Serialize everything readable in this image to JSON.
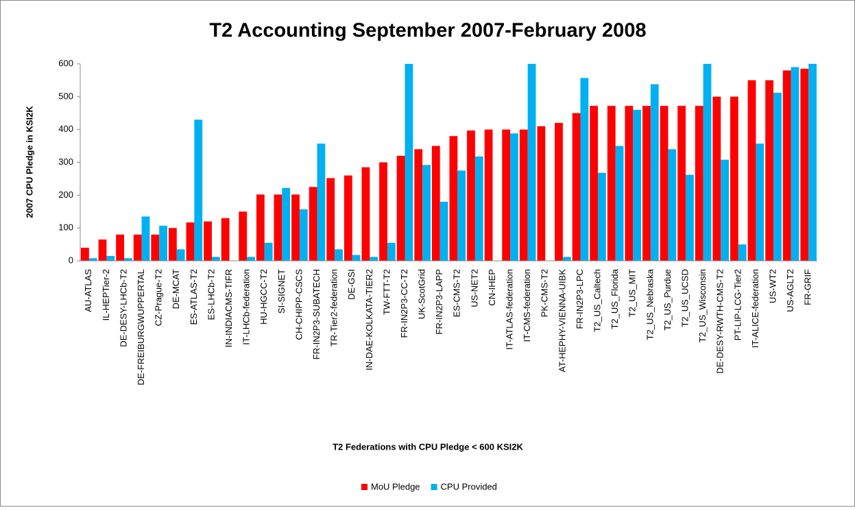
{
  "chart_data": {
    "type": "bar",
    "title": "T2 Accounting September 2007-February 2008",
    "x_label": "T2 Federations with CPU Pledge < 600 KSI2K",
    "y_label": "2007 CPU Pledge in KSI2K",
    "categories": [
      "AU-ATLAS",
      "IL-HEPTier-2",
      "DE-DESY-LHCb-T2",
      "DE-FREIBURGWUPPERTAL",
      "CZ-Prague-T2",
      "DE-MCAT",
      "ES-ATLAS-T2",
      "ES-LHCb-T2",
      "IN-INDIACMS-TIFR",
      "IT-LHCb-federation",
      "HU-HGCC-T2",
      "SI-SIGNET",
      "CH-CHIPP-CSCS",
      "FR-IN2P3-SUBATECH",
      "TR-Tier2-federation",
      "DE-GSI",
      "IN-DAE-KOLKATA-TIER2",
      "TW-FTT-T2",
      "FR-IN2P3-CC-T2",
      "UK-ScotGrid",
      "FR-IN2P3-LAPP",
      "ES-CMS-T2",
      "US-NET2",
      "CN-IHEP",
      "IT-ATLAS-federation",
      "IT-CMS-federation",
      "PK-CMS-T2",
      "AT-HEPHY-VIENNA-UIBK",
      "FR-IN2P3-LPC",
      "T2_US_Caltech",
      "T2_US_Florida",
      "T2_US_MIT",
      "T2_US_Nebraska",
      "T2_US_Purdue",
      "T2_US_UCSD",
      "T2_US_Wisconsin",
      "DE-DESY-RWTH-CMS-T2",
      "PT-LIP-LCG-Tier2",
      "IT-ALICE-federation",
      "US-WT2",
      "US-AGLT2",
      "FR-GRIF"
    ],
    "series": [
      {
        "name": "MoU Pledge",
        "color": "#ff0000",
        "values": [
          40,
          65,
          80,
          80,
          80,
          100,
          117,
          120,
          130,
          150,
          202,
          202,
          202,
          225,
          252,
          260,
          285,
          300,
          320,
          340,
          350,
          380,
          397,
          400,
          400,
          400,
          410,
          420,
          450,
          472,
          472,
          472,
          472,
          472,
          472,
          472,
          500,
          500,
          550,
          550,
          580,
          585
        ]
      },
      {
        "name": "CPU Provided",
        "color": "#00b0f0",
        "values": [
          8,
          15,
          8,
          135,
          107,
          35,
          430,
          12,
          0,
          12,
          55,
          222,
          157,
          357,
          35,
          18,
          12,
          55,
          600,
          292,
          180,
          275,
          318,
          0,
          388,
          600,
          0,
          12,
          557,
          268,
          350,
          460,
          538,
          340,
          262,
          600,
          308,
          50,
          357,
          512,
          590,
          600
        ]
      }
    ],
    "ylim": [
      0,
      600
    ],
    "yticks": [
      0,
      100,
      200,
      300,
      400,
      500,
      600
    ],
    "legend": "bottom"
  }
}
